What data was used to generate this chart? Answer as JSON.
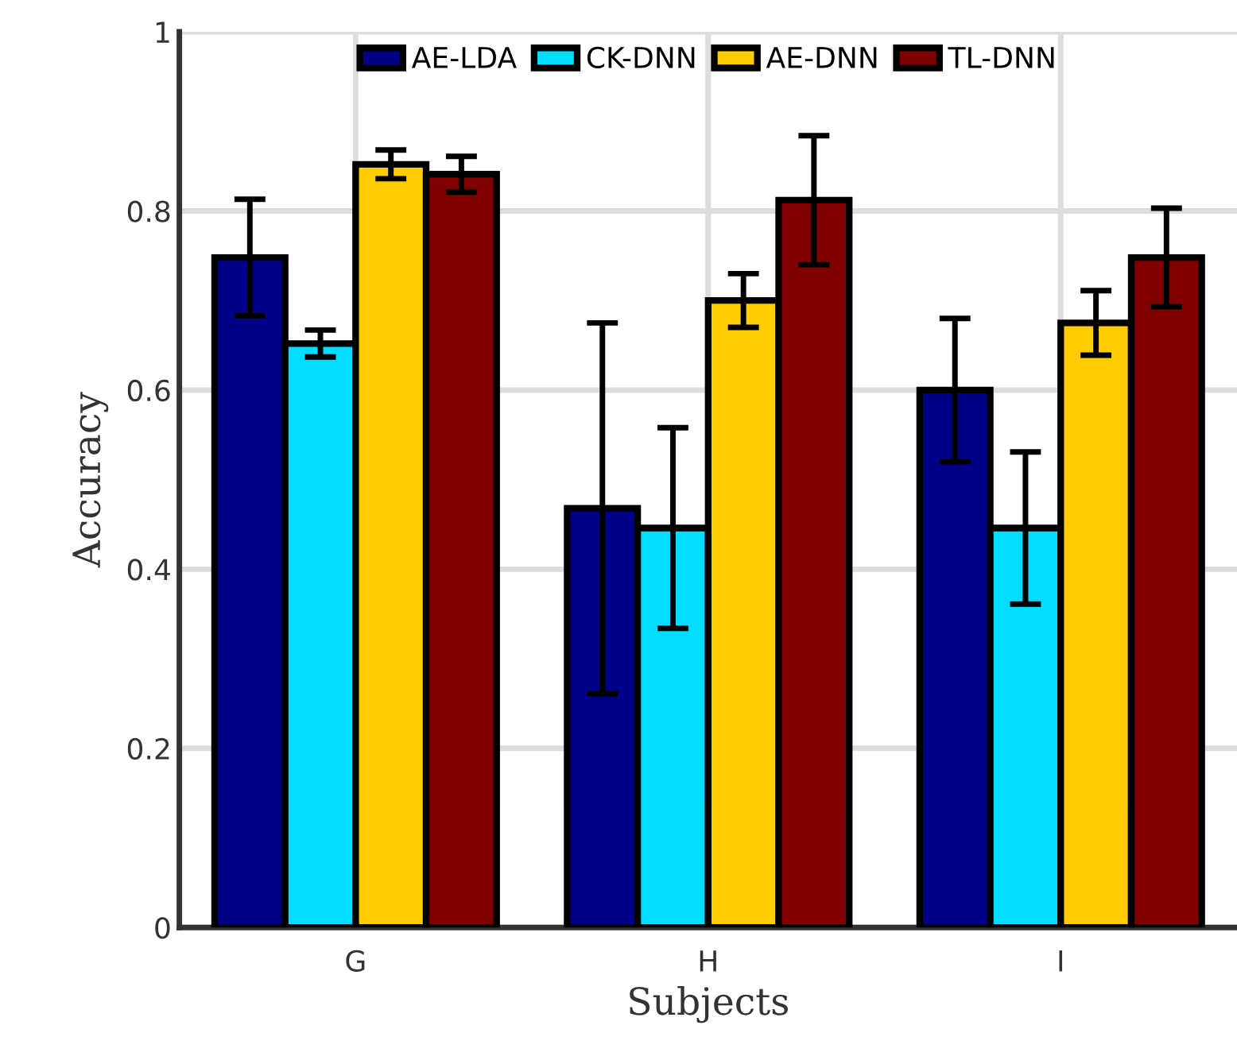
{
  "chart_data": {
    "type": "bar",
    "xlabel": "Subjects",
    "ylabel": "Accuracy",
    "categories": [
      "G",
      "H",
      "I"
    ],
    "series": [
      {
        "name": "AE-LDA",
        "color": "#000088",
        "values": [
          0.748,
          0.468,
          0.6
        ],
        "errors": [
          0.065,
          0.207,
          0.08
        ]
      },
      {
        "name": "CK-DNN",
        "color": "#00ddff",
        "values": [
          0.652,
          0.446,
          0.446
        ],
        "errors": [
          0.015,
          0.112,
          0.085
        ]
      },
      {
        "name": "AE-DNN",
        "color": "#ffcc00",
        "values": [
          0.852,
          0.7,
          0.675
        ],
        "errors": [
          0.016,
          0.03,
          0.036
        ]
      },
      {
        "name": "TL-DNN",
        "color": "#800000",
        "values": [
          0.841,
          0.812,
          0.748
        ],
        "errors": [
          0.02,
          0.072,
          0.055
        ]
      }
    ],
    "ylim": [
      0,
      1
    ],
    "yticks": [
      0,
      0.2,
      0.4,
      0.6,
      0.8,
      1
    ],
    "grid": true,
    "legend": "top"
  }
}
